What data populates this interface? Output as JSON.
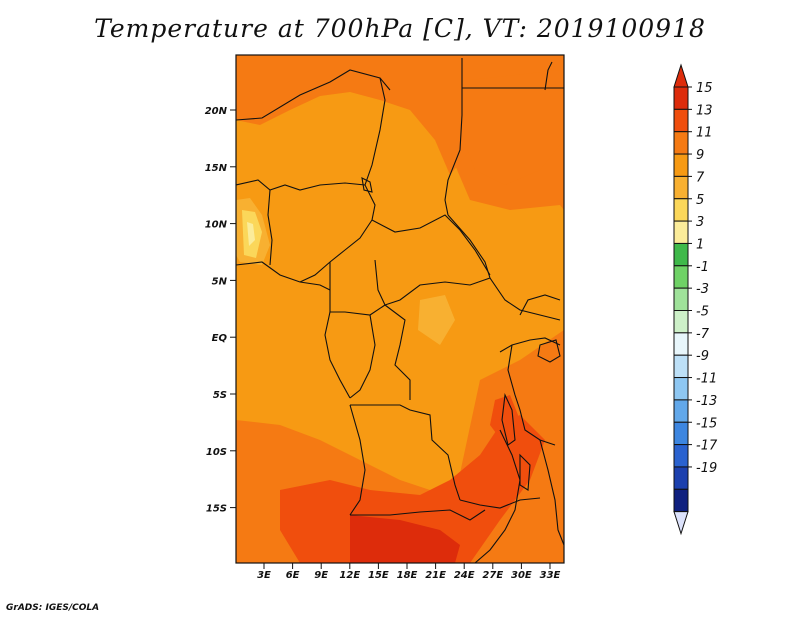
{
  "title": "Temperature at 700hPa [C], VT: 2019100918",
  "credit": "GrADS: IGES/COLA",
  "map": {
    "variable": "Temperature at 700hPa",
    "units": "C",
    "valid_time": "2019100918",
    "lat_ticks": [
      "20N",
      "15N",
      "10N",
      "5N",
      "EQ",
      "5S",
      "10S",
      "15S"
    ],
    "lon_ticks": [
      "3E",
      "6E",
      "9E",
      "12E",
      "15E",
      "18E",
      "21E",
      "24E",
      "27E",
      "30E",
      "33E"
    ],
    "field_colors": {
      "c13": "#f04e0d",
      "c11": "#f57a13",
      "c9": "#f79a13",
      "c7": "#f8b031",
      "c5": "#fbd75a",
      "c3": "#fbec9a",
      "c14": "#dd2c0b"
    }
  },
  "colorbar": {
    "labels": [
      "15",
      "13",
      "11",
      "9",
      "7",
      "5",
      "3",
      "1",
      "-1",
      "-3",
      "-5",
      "-7",
      "-9",
      "-11",
      "-13",
      "-15",
      "-17",
      "-19"
    ],
    "colors": [
      "#dd2c0b",
      "#f04e0d",
      "#f57a13",
      "#f79a13",
      "#f8b031",
      "#fbd75a",
      "#fbec9a",
      "#3fb94a",
      "#6fd266",
      "#9fe29a",
      "#cdf0c8",
      "#e8f6fb",
      "#bde0f7",
      "#8ec7f2",
      "#62a8ea",
      "#3d86e0",
      "#2a62cf",
      "#1c40ae",
      "#0f207f"
    ],
    "over_color": "#dd2c0b",
    "under_color": "#dce2fb"
  }
}
